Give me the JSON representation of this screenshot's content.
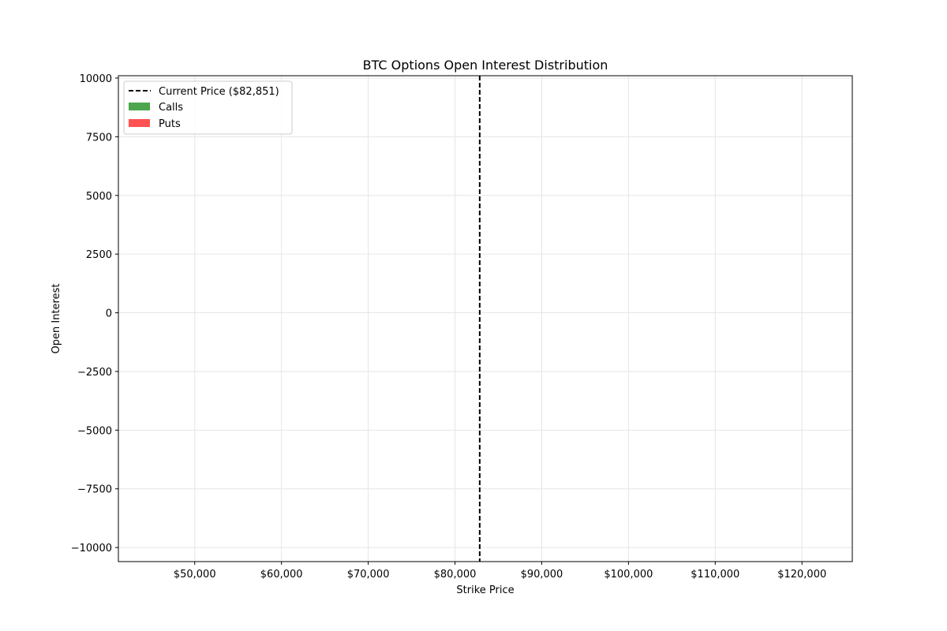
{
  "chart_data": {
    "type": "bar",
    "title": "BTC Options Open Interest Distribution",
    "xlabel": "Strike Price",
    "ylabel": "Open Interest",
    "xlim": [
      41200,
      125800
    ],
    "ylim": [
      -10600,
      10100
    ],
    "x_ticks": [
      {
        "value": 50000,
        "label": "$50,000"
      },
      {
        "value": 60000,
        "label": "$60,000"
      },
      {
        "value": 70000,
        "label": "$70,000"
      },
      {
        "value": 80000,
        "label": "$80,000"
      },
      {
        "value": 90000,
        "label": "$90,000"
      },
      {
        "value": 100000,
        "label": "$100,000"
      },
      {
        "value": 110000,
        "label": "$110,000"
      },
      {
        "value": 120000,
        "label": "$120,000"
      }
    ],
    "y_ticks": [
      {
        "value": 10000,
        "label": "10000"
      },
      {
        "value": 7500,
        "label": "7500"
      },
      {
        "value": 5000,
        "label": "5000"
      },
      {
        "value": 2500,
        "label": "2500"
      },
      {
        "value": 0,
        "label": "0"
      },
      {
        "value": -2500,
        "label": "−2500"
      },
      {
        "value": -5000,
        "label": "−5000"
      },
      {
        "value": -7500,
        "label": "−7500"
      },
      {
        "value": -10000,
        "label": "−10000"
      }
    ],
    "grid": true,
    "legend_position": "top-left",
    "current_price": {
      "value": 82851,
      "label": "Current Price ($82,851)",
      "color": "#000000"
    },
    "series": [
      {
        "name": "Calls",
        "color": "#4ca64c",
        "points": []
      },
      {
        "name": "Puts",
        "color": "#ff5252",
        "points": []
      }
    ]
  }
}
